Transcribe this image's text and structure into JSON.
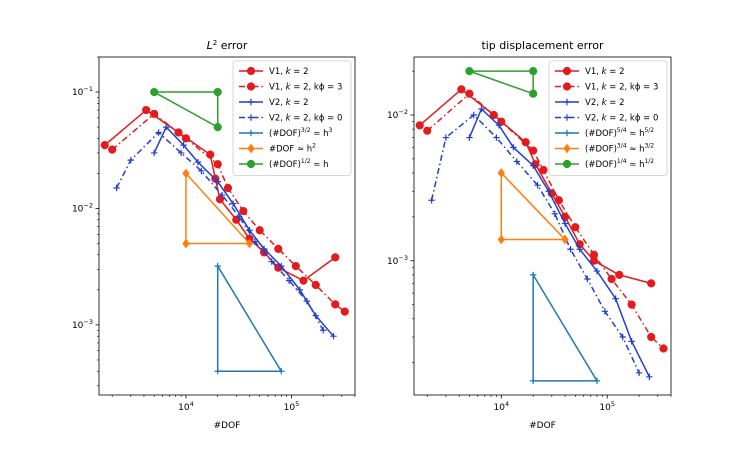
{
  "chart_data": [
    {
      "type": "line",
      "title": "L² error",
      "xlabel": "#DOF",
      "ylabel": "",
      "xscale": "log",
      "yscale": "log",
      "xlim": [
        1500,
        400000
      ],
      "ylim": [
        0.00025,
        0.2
      ],
      "xticks": [
        {
          "value": 10000,
          "base": "10",
          "exp": "4"
        },
        {
          "value": 100000,
          "base": "10",
          "exp": "5"
        }
      ],
      "yticks": [
        {
          "value": 0.1,
          "base": "10",
          "exp": "−1"
        },
        {
          "value": 0.01,
          "base": "10",
          "exp": "−2"
        },
        {
          "value": 0.001,
          "base": "10",
          "exp": "−3"
        }
      ],
      "legend_position": "top-right",
      "series": [
        {
          "name": "V1, k = 2",
          "legend_main": "V1, ",
          "legend_italic": "k",
          "legend_rest": " = 2",
          "color": "#e41a1c",
          "dash": "",
          "marker": "circle",
          "x": [
            1700,
            4200,
            8500,
            17000,
            19000,
            21000,
            30000,
            40000,
            55000,
            75000,
            130000,
            260000
          ],
          "y": [
            0.035,
            0.07,
            0.045,
            0.029,
            0.018,
            0.012,
            0.008,
            0.0055,
            0.0042,
            0.0031,
            0.0024,
            0.0038
          ]
        },
        {
          "name": "V1, k = 2, kϕ = 3",
          "legend_main": "V1, ",
          "legend_italic": "k",
          "legend_rest": " = 2, kϕ = 3",
          "color": "#e41a1c",
          "dash": "6,3,1.5,3",
          "marker": "circle",
          "x": [
            2000,
            5000,
            10000,
            20000,
            25000,
            35000,
            50000,
            75000,
            110000,
            170000,
            260000,
            320000
          ],
          "y": [
            0.032,
            0.065,
            0.04,
            0.024,
            0.015,
            0.0095,
            0.0065,
            0.0045,
            0.0032,
            0.0022,
            0.0015,
            0.0013
          ]
        },
        {
          "name": "V2, k = 2",
          "legend_main": "V2, ",
          "legend_italic": "k",
          "legend_rest": " = 2",
          "color": "#1f3fd0",
          "dash": "",
          "marker": "plus",
          "x": [
            5000,
            6500,
            9500,
            13000,
            20000,
            28000,
            40000,
            55000,
            80000,
            120000,
            170000,
            250000
          ],
          "y": [
            0.03,
            0.05,
            0.035,
            0.025,
            0.017,
            0.011,
            0.0065,
            0.0045,
            0.0032,
            0.002,
            0.0012,
            0.0008
          ]
        },
        {
          "name": "V2, k = 2, kϕ = 0",
          "legend_main": "V2, ",
          "legend_italic": "k",
          "legend_rest": " = 2, kϕ = 0",
          "color": "#1f3fd0",
          "dash": "6,3,1.5,3",
          "marker": "plus",
          "x": [
            2200,
            3000,
            5500,
            9000,
            14000,
            22000,
            32000,
            45000,
            65000,
            95000,
            140000,
            200000
          ],
          "y": [
            0.015,
            0.026,
            0.045,
            0.03,
            0.021,
            0.013,
            0.0085,
            0.0052,
            0.0035,
            0.0024,
            0.0016,
            0.0009
          ]
        }
      ],
      "triangles": [
        {
          "name": "(#DOF)^{3/2} ≃ h^3",
          "legend_main": "(#DOF)",
          "legend_sup": "3/2",
          "legend_mid": " ≃ h",
          "legend_sup2": "3",
          "color": "#1f77b4",
          "marker": "plus",
          "x": [
            20000,
            20000,
            80000
          ],
          "y": [
            0.0032,
            0.0004,
            0.0004
          ]
        },
        {
          "name": "#DOF ≃ h^2",
          "legend_main": "#DOF ≃ h",
          "legend_sup": "2",
          "legend_mid": "",
          "legend_sup2": "",
          "color": "#ff7f0e",
          "marker": "diamond",
          "x": [
            10000,
            10000,
            40000
          ],
          "y": [
            0.02,
            0.005,
            0.005
          ]
        },
        {
          "name": "(#DOF)^{1/2} ≃ h",
          "legend_main": "(#DOF)",
          "legend_sup": "1/2",
          "legend_mid": " ≃ h",
          "legend_sup2": "",
          "color": "#2ca02c",
          "marker": "circle",
          "x": [
            5000,
            20000,
            20000
          ],
          "y": [
            0.1,
            0.1,
            0.05
          ]
        }
      ]
    },
    {
      "type": "line",
      "title": "tip displacement error",
      "xlabel": "#DOF",
      "ylabel": "",
      "xscale": "log",
      "yscale": "log",
      "xlim": [
        1500,
        400000
      ],
      "ylim": [
        0.00012,
        0.025
      ],
      "xticks": [
        {
          "value": 10000,
          "base": "10",
          "exp": "4"
        },
        {
          "value": 100000,
          "base": "10",
          "exp": "5"
        }
      ],
      "yticks": [
        {
          "value": 0.01,
          "base": "10",
          "exp": "−2"
        },
        {
          "value": 0.001,
          "base": "10",
          "exp": "−3"
        }
      ],
      "legend_position": "top-right",
      "series": [
        {
          "name": "V1, k = 2",
          "legend_main": "V1, ",
          "legend_italic": "k",
          "legend_rest": " = 2",
          "color": "#e41a1c",
          "dash": "",
          "marker": "circle",
          "x": [
            1700,
            4200,
            8500,
            17000,
            21000,
            30000,
            40000,
            55000,
            75000,
            130000,
            260000
          ],
          "y": [
            0.0085,
            0.015,
            0.01,
            0.0065,
            0.0046,
            0.0029,
            0.002,
            0.0013,
            0.001,
            0.0008,
            0.0007
          ]
        },
        {
          "name": "V1, k = 2, kϕ = 3",
          "legend_main": "V1, ",
          "legend_italic": "k",
          "legend_rest": " = 2, kϕ = 3",
          "color": "#e41a1c",
          "dash": "6,3,1.5,3",
          "marker": "circle",
          "x": [
            2000,
            5000,
            10000,
            20000,
            25000,
            35000,
            50000,
            75000,
            110000,
            170000,
            260000,
            340000
          ],
          "y": [
            0.0078,
            0.014,
            0.009,
            0.0057,
            0.0042,
            0.0026,
            0.0017,
            0.0011,
            0.00075,
            0.0005,
            0.0003,
            0.00025
          ]
        },
        {
          "name": "V2, k = 2",
          "legend_main": "V2, ",
          "legend_italic": "k",
          "legend_rest": " = 2",
          "color": "#1f3fd0",
          "dash": "",
          "marker": "plus",
          "x": [
            5000,
            6500,
            9500,
            13000,
            20000,
            28000,
            40000,
            55000,
            80000,
            120000,
            170000,
            250000
          ],
          "y": [
            0.007,
            0.011,
            0.0085,
            0.006,
            0.0045,
            0.003,
            0.0018,
            0.0012,
            0.00085,
            0.00055,
            0.00028,
            0.00016
          ]
        },
        {
          "name": "V2, k = 2, kϕ = 0",
          "legend_main": "V2, ",
          "legend_italic": "k",
          "legend_rest": " = 2, kϕ = 0",
          "color": "#1f3fd0",
          "dash": "6,3,1.5,3",
          "marker": "plus",
          "x": [
            2200,
            3000,
            5500,
            9000,
            14000,
            22000,
            32000,
            45000,
            65000,
            95000,
            140000,
            200000
          ],
          "y": [
            0.0026,
            0.007,
            0.01,
            0.007,
            0.0048,
            0.0033,
            0.0021,
            0.0012,
            0.00075,
            0.00045,
            0.0003,
            0.00017
          ]
        }
      ],
      "triangles": [
        {
          "name": "(#DOF)^{5/4} ≃ h^{5/2}",
          "legend_main": "(#DOF)",
          "legend_sup": "5/4",
          "legend_mid": " ≃ h",
          "legend_sup2": "5/2",
          "color": "#1f77b4",
          "marker": "plus",
          "x": [
            20000,
            20000,
            80000
          ],
          "y": [
            0.0008,
            0.00015,
            0.00015
          ]
        },
        {
          "name": "(#DOF)^{3/4} ≃ h^{3/2}",
          "legend_main": "(#DOF)",
          "legend_sup": "3/4",
          "legend_mid": " ≃ h",
          "legend_sup2": "3/2",
          "color": "#ff7f0e",
          "marker": "diamond",
          "x": [
            10000,
            10000,
            40000
          ],
          "y": [
            0.004,
            0.0014,
            0.0014
          ]
        },
        {
          "name": "(#DOF)^{1/4} ≃ h^{1/2}",
          "legend_main": "(#DOF)",
          "legend_sup": "1/4",
          "legend_mid": " ≃ h",
          "legend_sup2": "1/2",
          "color": "#2ca02c",
          "marker": "circle",
          "x": [
            5000,
            20000,
            20000
          ],
          "y": [
            0.02,
            0.02,
            0.014
          ]
        }
      ]
    }
  ]
}
